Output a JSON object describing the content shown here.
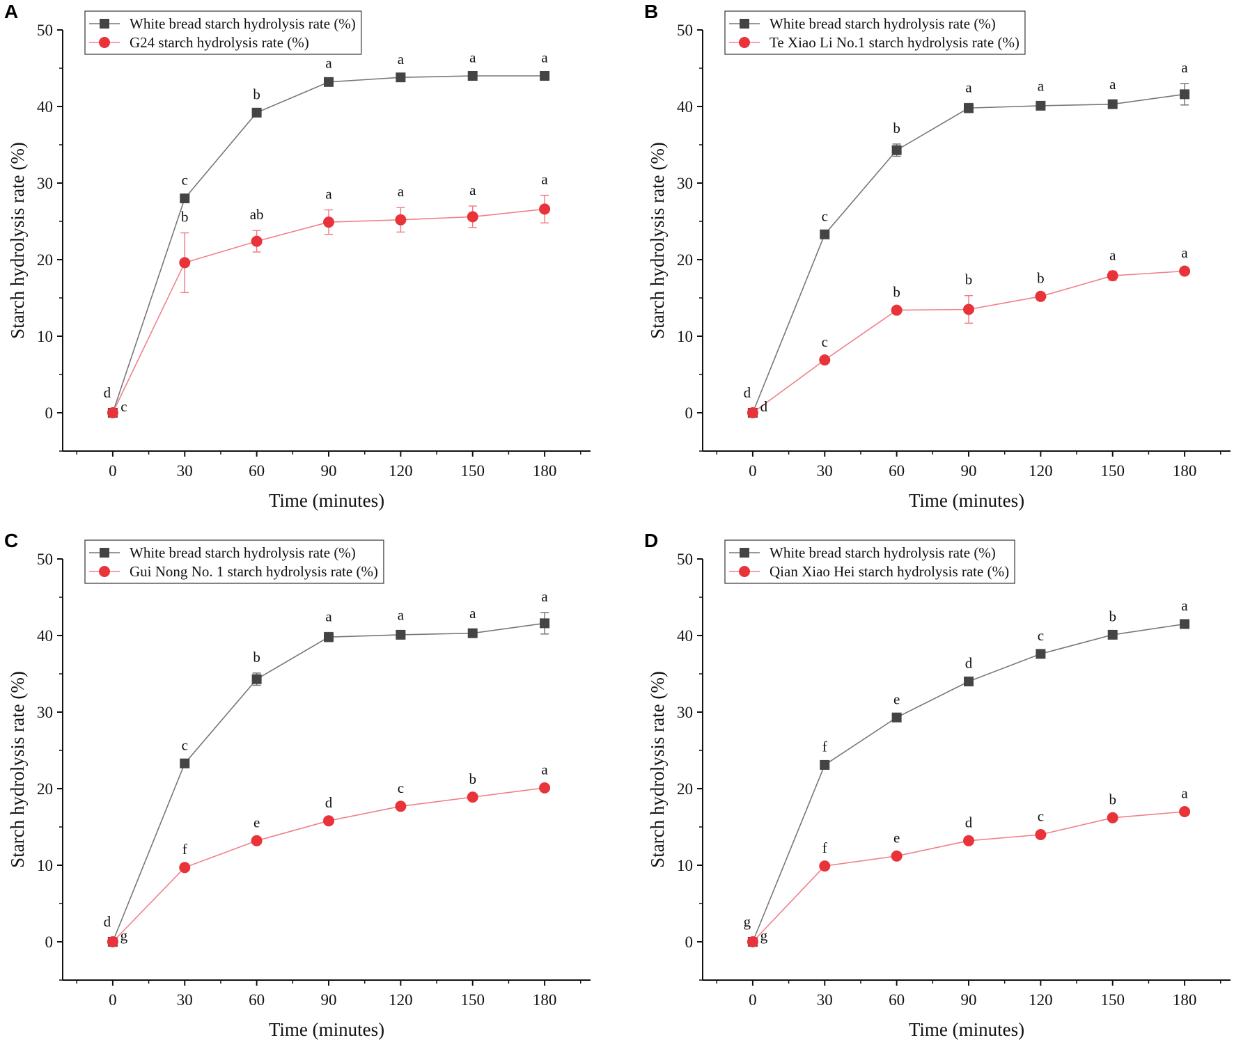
{
  "colors": {
    "white_bread": "#444444",
    "sample": "#e8333a",
    "sample_line": "#f08088"
  },
  "chart_data": [
    {
      "type": "line",
      "panel": "A",
      "xlabel": "Time (minutes)",
      "ylabel": "Starch hydrolysis rate (%)",
      "x": [
        0,
        30,
        60,
        90,
        120,
        150,
        180
      ],
      "xticks": [
        "0",
        "30",
        "60",
        "90",
        "120",
        "150",
        "180"
      ],
      "yticks": [
        "0",
        "10",
        "20",
        "30",
        "40",
        "50"
      ],
      "xlim": [
        -20,
        200
      ],
      "ylim": [
        -5,
        50
      ],
      "legend_position": "top-left",
      "series": [
        {
          "name": "White bread starch hydrolysis rate (%)",
          "marker": "square",
          "values": [
            0,
            28,
            39.2,
            43.2,
            43.8,
            44,
            44
          ],
          "errors": [
            0,
            0.3,
            0.3,
            0.4,
            0.3,
            0.3,
            0.3
          ],
          "labels": [
            "d",
            "c",
            "b",
            "a",
            "a",
            "a",
            "a"
          ]
        },
        {
          "name": "G24 starch hydrolysis rate (%)",
          "marker": "circle",
          "values": [
            0,
            19.6,
            22.4,
            24.9,
            25.2,
            25.6,
            26.6
          ],
          "errors": [
            0,
            3.9,
            1.4,
            1.6,
            1.6,
            1.4,
            1.8
          ],
          "labels": [
            "c",
            "b",
            "ab",
            "a",
            "a",
            "a",
            "a"
          ]
        }
      ]
    },
    {
      "type": "line",
      "panel": "B",
      "xlabel": "Time (minutes)",
      "ylabel": "Starch hydrolysis rate (%)",
      "x": [
        0,
        30,
        60,
        90,
        120,
        150,
        180
      ],
      "xticks": [
        "0",
        "30",
        "60",
        "90",
        "120",
        "150",
        "180"
      ],
      "yticks": [
        "0",
        "10",
        "20",
        "30",
        "40",
        "50"
      ],
      "xlim": [
        -20,
        200
      ],
      "ylim": [
        -5,
        50
      ],
      "legend_position": "top-left",
      "series": [
        {
          "name": "White bread starch hydrolysis rate (%)",
          "marker": "square",
          "values": [
            0,
            23.3,
            34.3,
            39.8,
            40.1,
            40.3,
            41.6
          ],
          "errors": [
            0,
            0.3,
            0.8,
            0.6,
            0.5,
            0.5,
            1.4
          ],
          "labels": [
            "d",
            "c",
            "b",
            "a",
            "a",
            "a",
            "a"
          ]
        },
        {
          "name": "Te Xiao Li No.1 starch hydrolysis rate (%)",
          "marker": "circle",
          "values": [
            0,
            6.9,
            13.4,
            13.5,
            15.2,
            17.9,
            18.5
          ],
          "errors": [
            0,
            0.3,
            0.3,
            1.8,
            0.3,
            0.6,
            0.3
          ],
          "labels": [
            "d",
            "c",
            "b",
            "b",
            "b",
            "a",
            "a"
          ]
        }
      ]
    },
    {
      "type": "line",
      "panel": "C",
      "xlabel": "Time (minutes)",
      "ylabel": "Starch hydrolysis rate (%)",
      "x": [
        0,
        30,
        60,
        90,
        120,
        150,
        180
      ],
      "xticks": [
        "0",
        "30",
        "60",
        "90",
        "120",
        "150",
        "180"
      ],
      "yticks": [
        "0",
        "10",
        "20",
        "30",
        "40",
        "50"
      ],
      "xlim": [
        -20,
        200
      ],
      "ylim": [
        -5,
        50
      ],
      "legend_position": "top-left",
      "series": [
        {
          "name": "White bread starch hydrolysis rate (%)",
          "marker": "square",
          "values": [
            0,
            23.3,
            34.3,
            39.8,
            40.1,
            40.3,
            41.6
          ],
          "errors": [
            0,
            0.3,
            0.8,
            0.6,
            0.5,
            0.5,
            1.4
          ],
          "labels": [
            "d",
            "c",
            "b",
            "a",
            "a",
            "a",
            "a"
          ]
        },
        {
          "name": "Gui Nong No. 1 starch hydrolysis rate (%)",
          "marker": "circle",
          "values": [
            0,
            9.7,
            13.2,
            15.8,
            17.7,
            18.9,
            20.1
          ],
          "errors": [
            0,
            0.2,
            0.2,
            0.2,
            0.2,
            0.2,
            0.2
          ],
          "labels": [
            "g",
            "f",
            "e",
            "d",
            "c",
            "b",
            "a"
          ]
        }
      ]
    },
    {
      "type": "line",
      "panel": "D",
      "xlabel": "Time (minutes)",
      "ylabel": "Starch hydrolysis rate (%)",
      "x": [
        0,
        30,
        60,
        90,
        120,
        150,
        180
      ],
      "xticks": [
        "0",
        "30",
        "60",
        "90",
        "120",
        "150",
        "180"
      ],
      "yticks": [
        "0",
        "10",
        "20",
        "30",
        "40",
        "50"
      ],
      "xlim": [
        -20,
        200
      ],
      "ylim": [
        -5,
        50
      ],
      "legend_position": "top-left",
      "series": [
        {
          "name": "White bread starch hydrolysis rate (%)",
          "marker": "square",
          "values": [
            0,
            23.1,
            29.3,
            34,
            37.6,
            40.1,
            41.5
          ],
          "errors": [
            0,
            0.2,
            0.2,
            0.2,
            0.2,
            0.2,
            0.2
          ],
          "labels": [
            "g",
            "f",
            "e",
            "d",
            "c",
            "b",
            "a"
          ]
        },
        {
          "name": "Qian Xiao Hei  starch hydrolysis rate (%)",
          "marker": "circle",
          "values": [
            0,
            9.9,
            11.2,
            13.2,
            14,
            16.2,
            17
          ],
          "errors": [
            0,
            0.2,
            0.2,
            0.2,
            0.2,
            0.2,
            0.2
          ],
          "labels": [
            "g",
            "f",
            "e",
            "d",
            "c",
            "b",
            "a"
          ]
        }
      ]
    }
  ]
}
